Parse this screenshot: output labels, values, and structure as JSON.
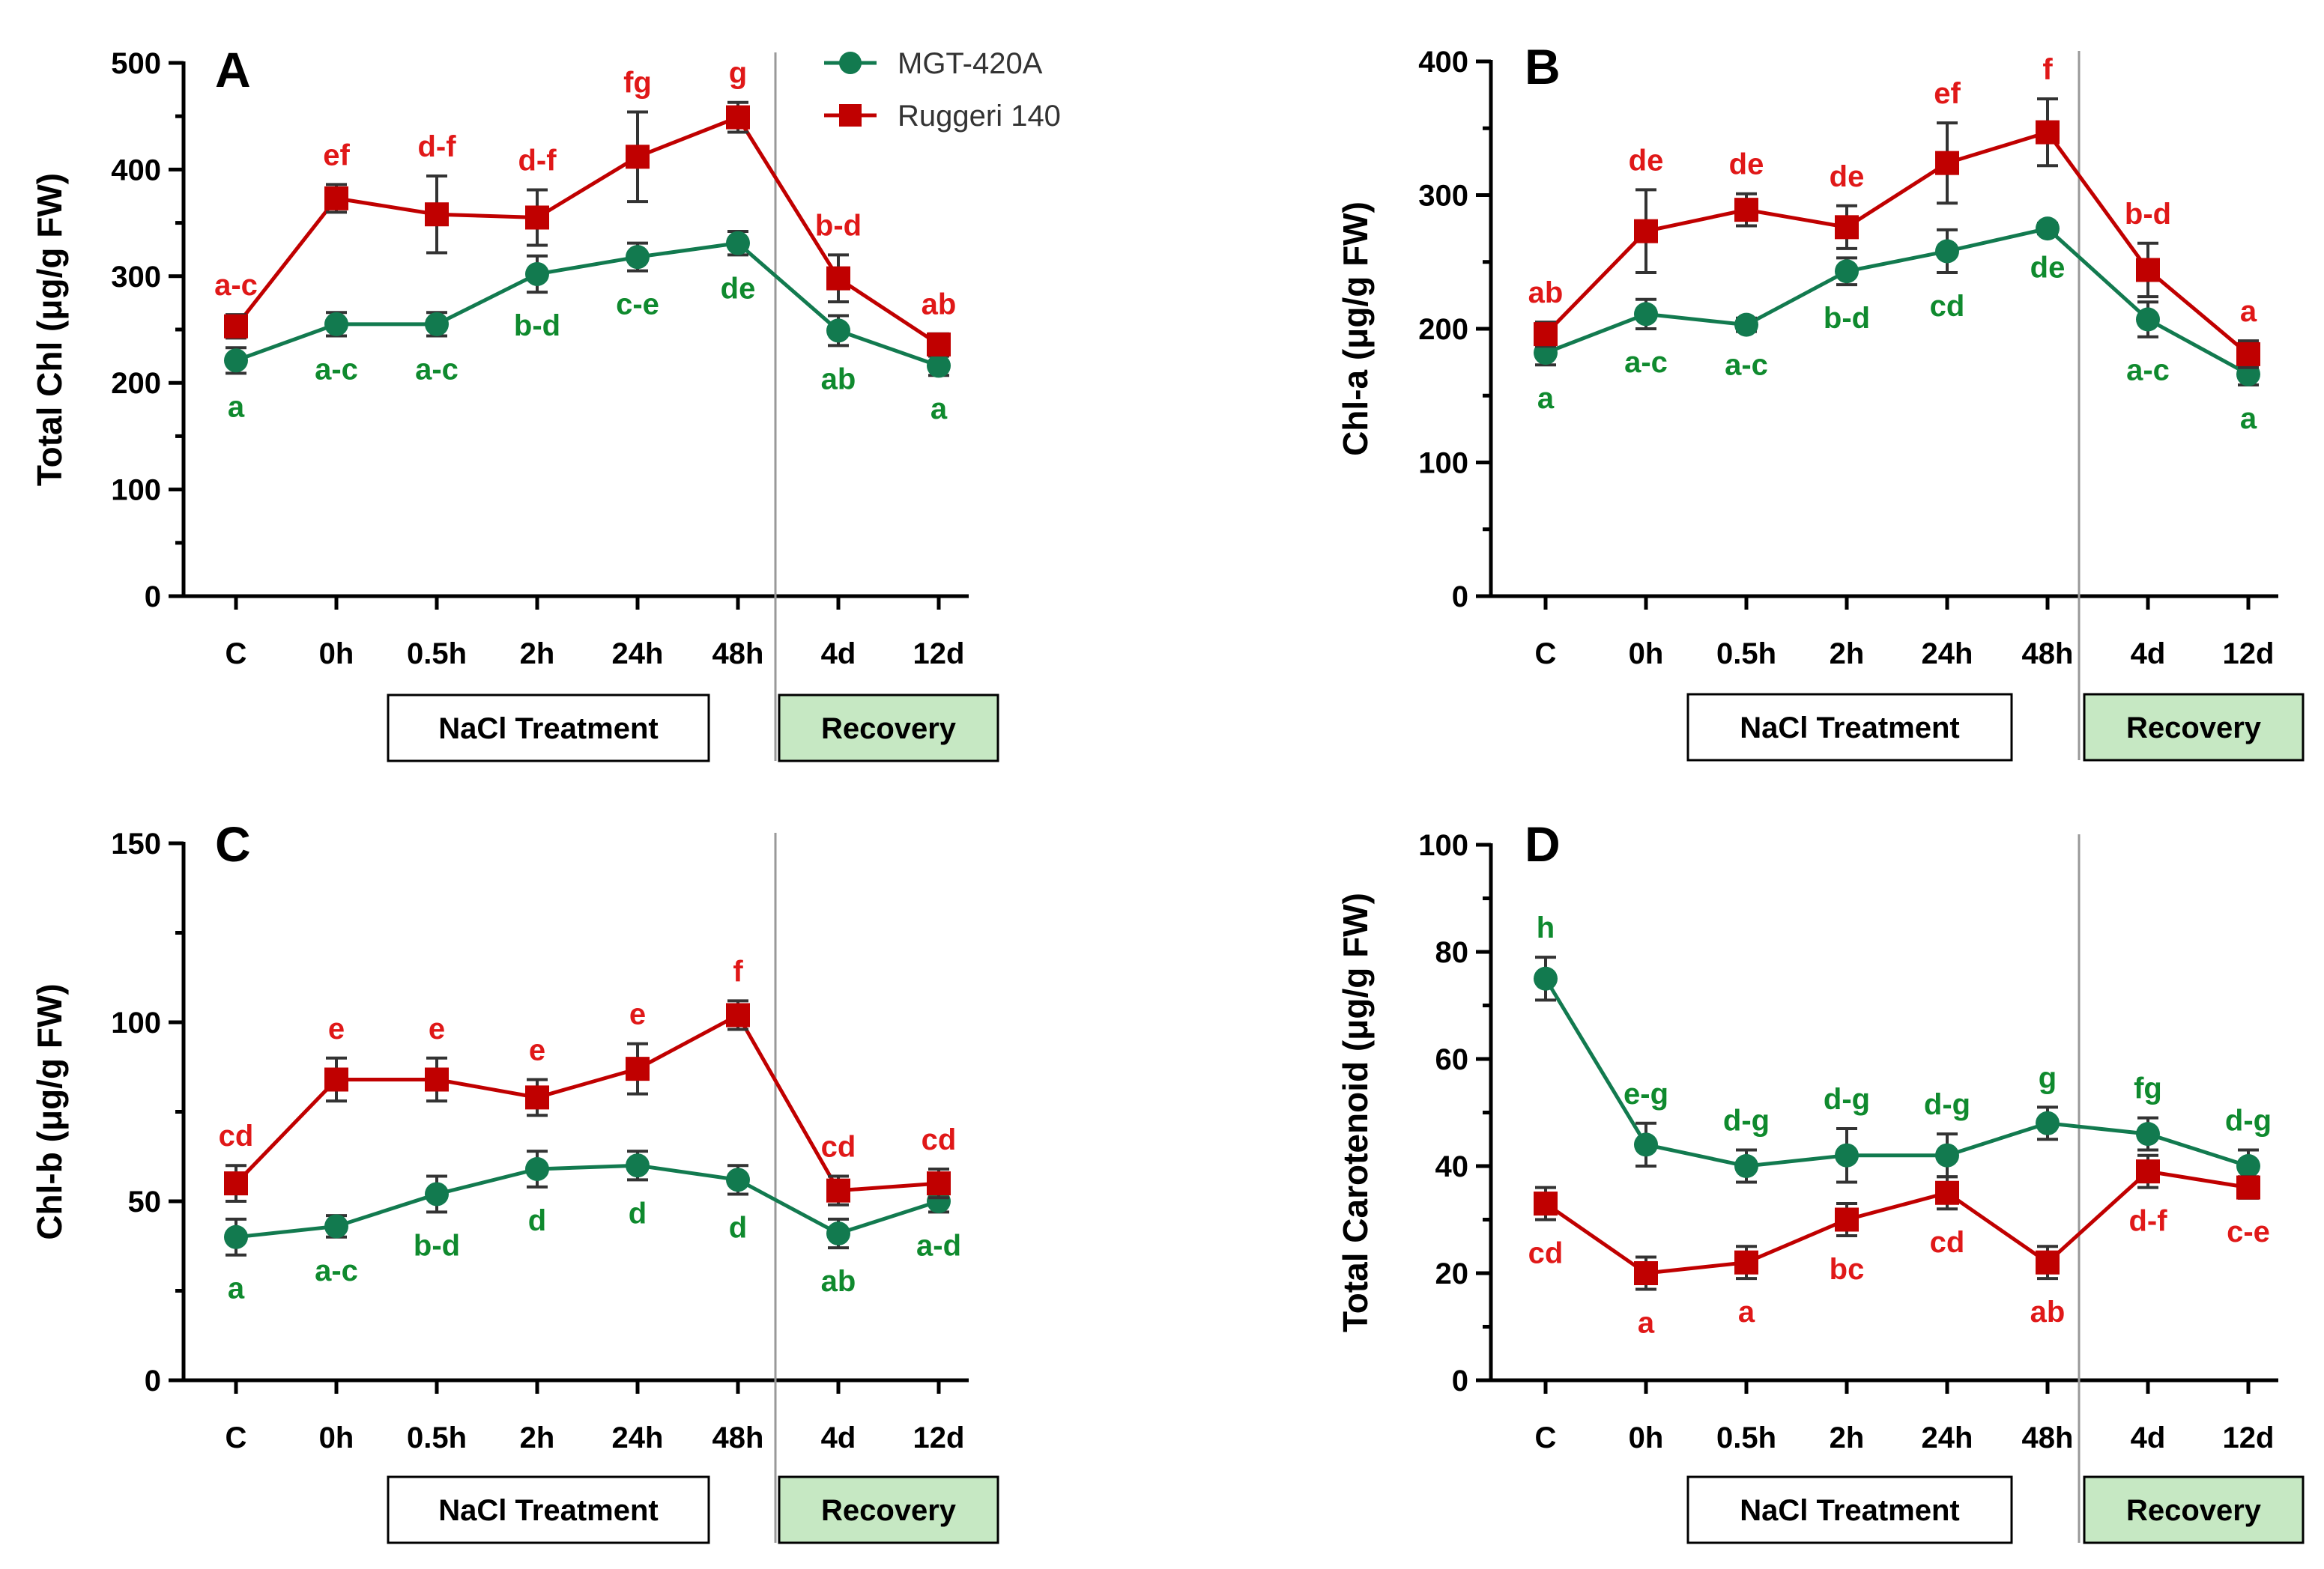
{
  "colors": {
    "green": "#127a4f",
    "red": "#c00000",
    "recovery_fill": "#c6e8c3",
    "sig_green": "#0f8a2e",
    "sig_red": "#e01818"
  },
  "legend": [
    {
      "name": "MGT-420A",
      "marker": "circle"
    },
    {
      "name": "Ruggeri 140",
      "marker": "square"
    }
  ],
  "boxes": {
    "treatment": "NaCl Treatment",
    "recovery": "Recovery"
  },
  "chart_data": [
    {
      "type": "line",
      "panel": "A",
      "categories": [
        "C",
        "0h",
        "0.5h",
        "2h",
        "24h",
        "48h",
        "4d",
        "12d"
      ],
      "ylabel": "Total Chl (μg/g FW)",
      "ylim": [
        0,
        500
      ],
      "yticks": [
        0,
        100,
        200,
        300,
        400,
        500
      ],
      "series": [
        {
          "name": "MGT-420A",
          "values": [
            221,
            255,
            255,
            302,
            318,
            331,
            249,
            216
          ],
          "errors": [
            12,
            11,
            11,
            17,
            13,
            11,
            14,
            9
          ],
          "labels": [
            "a",
            "a-c",
            "a-c",
            "b-d",
            "c-e",
            "de",
            "ab",
            "a"
          ]
        },
        {
          "name": "Ruggeri 140",
          "values": [
            253,
            373,
            358,
            355,
            412,
            449,
            298,
            236
          ],
          "errors": [
            11,
            13,
            36,
            26,
            42,
            14,
            22,
            10
          ],
          "labels": [
            "a-c",
            "ef",
            "d-f",
            "d-f",
            "fg",
            "g",
            "b-d",
            "ab"
          ]
        }
      ]
    },
    {
      "type": "line",
      "panel": "B",
      "categories": [
        "C",
        "0h",
        "0.5h",
        "2h",
        "24h",
        "48h",
        "4d",
        "12d"
      ],
      "ylabel": "Chl-a (μg/g FW)",
      "ylim": [
        0,
        400
      ],
      "yticks": [
        0,
        100,
        200,
        300,
        400
      ],
      "series": [
        {
          "name": "MGT-420A",
          "values": [
            182,
            211,
            203,
            243,
            258,
            275,
            207,
            166
          ],
          "errors": [
            9,
            11,
            5,
            10,
            16,
            4,
            13,
            8
          ],
          "labels": [
            "a",
            "a-c",
            "a-c",
            "b-d",
            "cd",
            "de",
            "a-c",
            "a"
          ]
        },
        {
          "name": "Ruggeri 140",
          "values": [
            196,
            273,
            289,
            276,
            324,
            347,
            244,
            181
          ],
          "errors": [
            9,
            31,
            12,
            16,
            30,
            25,
            20,
            10
          ],
          "labels": [
            "ab",
            "de",
            "de",
            "de",
            "ef",
            "f",
            "b-d",
            "a"
          ]
        }
      ]
    },
    {
      "type": "line",
      "panel": "C",
      "categories": [
        "C",
        "0h",
        "0.5h",
        "2h",
        "24h",
        "48h",
        "4d",
        "12d"
      ],
      "ylabel": "Chl-b (μg/g FW)",
      "ylim": [
        0,
        150
      ],
      "yticks": [
        0,
        50,
        100,
        150
      ],
      "series": [
        {
          "name": "MGT-420A",
          "values": [
            40,
            43,
            52,
            59,
            60,
            56,
            41,
            50
          ],
          "errors": [
            5,
            3,
            5,
            5,
            4,
            4,
            4,
            3
          ],
          "labels": [
            "a",
            "a-c",
            "b-d",
            "d",
            "d",
            "d",
            "ab",
            "a-d"
          ]
        },
        {
          "name": "Ruggeri 140",
          "values": [
            55,
            84,
            84,
            79,
            87,
            102,
            53,
            55
          ],
          "errors": [
            5,
            6,
            6,
            5,
            7,
            4,
            4,
            4
          ],
          "labels": [
            "cd",
            "e",
            "e",
            "e",
            "e",
            "f",
            "cd",
            "cd"
          ]
        }
      ]
    },
    {
      "type": "line",
      "panel": "D",
      "categories": [
        "C",
        "0h",
        "0.5h",
        "2h",
        "24h",
        "48h",
        "4d",
        "12d"
      ],
      "ylabel": "Total Carotenoid (μg/g FW)",
      "ylim": [
        0,
        100
      ],
      "yticks": [
        0,
        20,
        40,
        60,
        80,
        100
      ],
      "series": [
        {
          "name": "MGT-420A",
          "values": [
            75,
            44,
            40,
            42,
            42,
            48,
            46,
            40
          ],
          "errors": [
            4,
            4,
            3,
            5,
            4,
            3,
            3,
            3
          ],
          "labels": [
            "h",
            "e-g",
            "d-g",
            "d-g",
            "d-g",
            "g",
            "fg",
            "d-g"
          ]
        },
        {
          "name": "Ruggeri 140",
          "values": [
            33,
            20,
            22,
            30,
            35,
            22,
            39,
            36
          ],
          "errors": [
            3,
            3,
            3,
            3,
            3,
            3,
            3,
            2
          ],
          "labels": [
            "cd",
            "a",
            "a",
            "bc",
            "cd",
            "ab",
            "d-f",
            "c-e"
          ]
        }
      ]
    }
  ]
}
